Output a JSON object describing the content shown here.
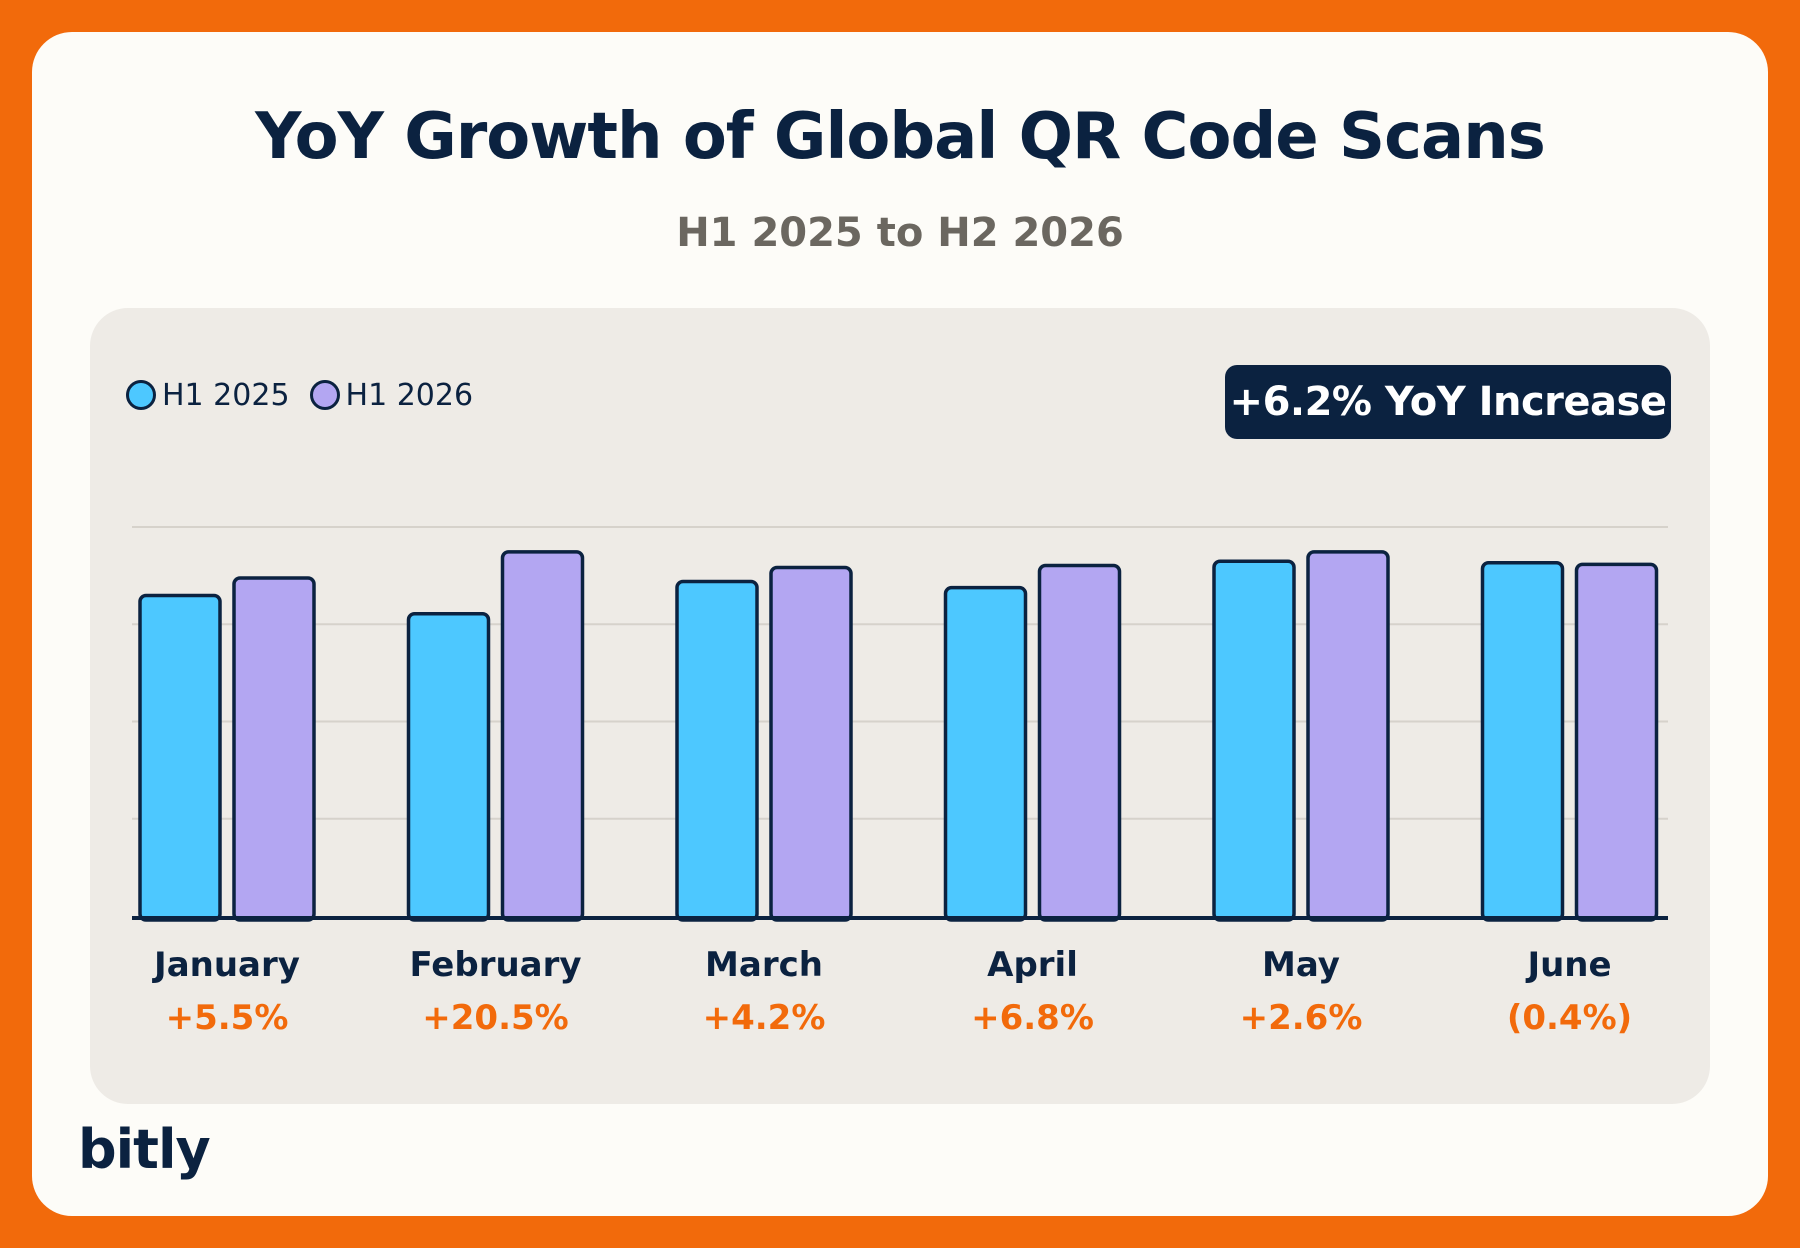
{
  "title": "YoY Growth of Global QR Code Scans",
  "subtitle": "H1 2025 to H2 2026",
  "badge": "+6.2% YoY Increase",
  "logo": "bitly",
  "colors": {
    "background": "#f26a0b",
    "series_2025": "#4dc8ff",
    "series_2026": "#b3a6f2",
    "outline": "#0b2240",
    "accent": "#f26a0b"
  },
  "chart_data": {
    "type": "bar",
    "title": "YoY Growth of Global QR Code Scans",
    "subtitle": "H1 2025 to H2 2026",
    "categories": [
      "January",
      "February",
      "March",
      "April",
      "May",
      "June"
    ],
    "series": [
      {
        "name": "H1 2025",
        "values": [
          82.4,
          77.7,
          86.0,
          84.4,
          91.2,
          90.8
        ]
      },
      {
        "name": "H1 2026",
        "values": [
          86.9,
          93.6,
          89.6,
          90.1,
          93.6,
          90.4
        ]
      }
    ],
    "growth_labels": [
      "+5.5%",
      "+20.5%",
      "+4.2%",
      "+6.8%",
      "+2.6%",
      "(0.4%)"
    ],
    "ylim": [
      0,
      100
    ],
    "grid": true,
    "legend": "top-left",
    "xlabel": "",
    "ylabel": ""
  }
}
